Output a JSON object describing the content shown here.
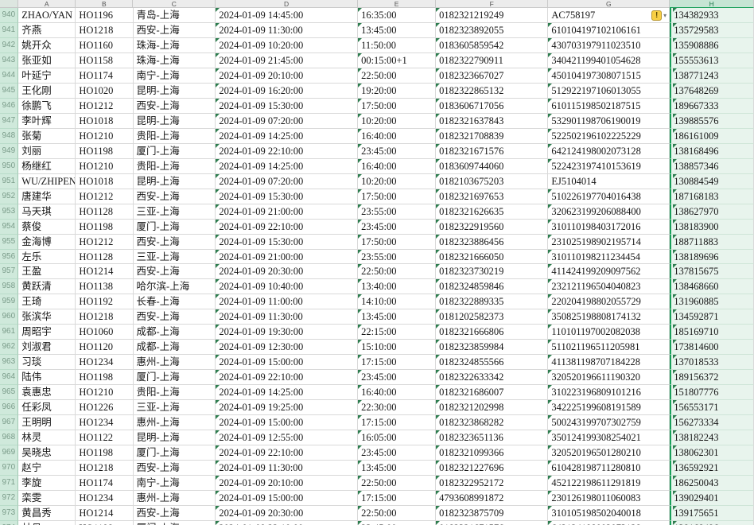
{
  "sheet": {
    "corner_label": "",
    "columns": [
      {
        "letter": "A",
        "key": "name"
      },
      {
        "letter": "B",
        "key": "flight"
      },
      {
        "letter": "C",
        "key": "route"
      },
      {
        "letter": "D",
        "key": "departure"
      },
      {
        "letter": "E",
        "key": "arrival"
      },
      {
        "letter": "F",
        "key": "booking_no"
      },
      {
        "letter": "G",
        "key": "id_no"
      },
      {
        "letter": "H",
        "key": "phone"
      }
    ],
    "selected_column": "H",
    "error_indicator_columns": [
      "departure",
      "arrival",
      "booking_no",
      "id_no",
      "phone"
    ],
    "rows": [
      {
        "n": 940,
        "name": "ZHAO/YAN",
        "flight": "HO1196",
        "route": "青岛-上海",
        "departure": "2024-01-09 14:45:00",
        "arrival": "16:35:00",
        "booking_no": "0182321219249",
        "id_no": "AC758197",
        "phone": "134382933",
        "warning": true
      },
      {
        "n": 941,
        "name": "齐燕",
        "flight": "HO1218",
        "route": "西安-上海",
        "departure": "2024-01-09 11:30:00",
        "arrival": "13:45:00",
        "booking_no": "0182323892055",
        "id_no": "610104197102106161",
        "phone": "135729583"
      },
      {
        "n": 942,
        "name": "姚开众",
        "flight": "HO1160",
        "route": "珠海-上海",
        "departure": "2024-01-09 10:20:00",
        "arrival": "11:50:00",
        "booking_no": "0183605859542",
        "id_no": "430703197911023510",
        "phone": "135908886"
      },
      {
        "n": 943,
        "name": "张亚如",
        "flight": "HO1158",
        "route": "珠海-上海",
        "departure": "2024-01-09 21:45:00",
        "arrival": "00:15:00+1",
        "booking_no": "0182322790911",
        "id_no": "340421199401054628",
        "phone": "155553613"
      },
      {
        "n": 944,
        "name": "叶延宁",
        "flight": "HO1174",
        "route": "南宁-上海",
        "departure": "2024-01-09 20:10:00",
        "arrival": "22:50:00",
        "booking_no": "0182323667027",
        "id_no": "450104197308071515",
        "phone": "138771243"
      },
      {
        "n": 945,
        "name": "王化刚",
        "flight": "HO1020",
        "route": "昆明-上海",
        "departure": "2024-01-09 16:20:00",
        "arrival": "19:20:00",
        "booking_no": "0182322865132",
        "id_no": "512922197106013055",
        "phone": "137648269"
      },
      {
        "n": 946,
        "name": "徐鹏飞",
        "flight": "HO1212",
        "route": "西安-上海",
        "departure": "2024-01-09 15:30:00",
        "arrival": "17:50:00",
        "booking_no": "0183606717056",
        "id_no": "610115198502187515",
        "phone": "189667333"
      },
      {
        "n": 947,
        "name": "李叶辉",
        "flight": "HO1018",
        "route": "昆明-上海",
        "departure": "2024-01-09 07:20:00",
        "arrival": "10:20:00",
        "booking_no": "0182321637843",
        "id_no": "532901198706190019",
        "phone": "139885576"
      },
      {
        "n": 948,
        "name": "张菊",
        "flight": "HO1210",
        "route": "贵阳-上海",
        "departure": "2024-01-09 14:25:00",
        "arrival": "16:40:00",
        "booking_no": "0182321708839",
        "id_no": "522502196102225229",
        "phone": "186161009"
      },
      {
        "n": 949,
        "name": "刘丽",
        "flight": "HO1198",
        "route": "厦门-上海",
        "departure": "2024-01-09 22:10:00",
        "arrival": "23:45:00",
        "booking_no": "0182321671576",
        "id_no": "642124198002073128",
        "phone": "138168496"
      },
      {
        "n": 950,
        "name": "杨继红",
        "flight": "HO1210",
        "route": "贵阳-上海",
        "departure": "2024-01-09 14:25:00",
        "arrival": "16:40:00",
        "booking_no": "0183609744060",
        "id_no": "522423197410153619",
        "phone": "138857346"
      },
      {
        "n": 951,
        "name": "WU/ZHIPENG",
        "flight": "HO1018",
        "route": "昆明-上海",
        "departure": "2024-01-09 07:20:00",
        "arrival": "10:20:00",
        "booking_no": "0182103675203",
        "id_no": "EJ5104014",
        "phone": "130884549"
      },
      {
        "n": 952,
        "name": "唐建华",
        "flight": "HO1212",
        "route": "西安-上海",
        "departure": "2024-01-09 15:30:00",
        "arrival": "17:50:00",
        "booking_no": "0182321697653",
        "id_no": "510226197704016438",
        "phone": "187168183"
      },
      {
        "n": 953,
        "name": "马天琪",
        "flight": "HO1128",
        "route": "三亚-上海",
        "departure": "2024-01-09 21:00:00",
        "arrival": "23:55:00",
        "booking_no": "0182321626635",
        "id_no": "320623199206088400",
        "phone": "138627970"
      },
      {
        "n": 954,
        "name": "蔡俊",
        "flight": "HO1198",
        "route": "厦门-上海",
        "departure": "2024-01-09 22:10:00",
        "arrival": "23:45:00",
        "booking_no": "0182322919560",
        "id_no": "310110198403172016",
        "phone": "138183900"
      },
      {
        "n": 955,
        "name": "金海博",
        "flight": "HO1212",
        "route": "西安-上海",
        "departure": "2024-01-09 15:30:00",
        "arrival": "17:50:00",
        "booking_no": "0182323886456",
        "id_no": "231025198902195714",
        "phone": "188711883"
      },
      {
        "n": 956,
        "name": "左乐",
        "flight": "HO1128",
        "route": "三亚-上海",
        "departure": "2024-01-09 21:00:00",
        "arrival": "23:55:00",
        "booking_no": "0182321666050",
        "id_no": "310110198211234454",
        "phone": "138189696"
      },
      {
        "n": 957,
        "name": "王盈",
        "flight": "HO1214",
        "route": "西安-上海",
        "departure": "2024-01-09 20:30:00",
        "arrival": "22:50:00",
        "booking_no": "0182323730219",
        "id_no": "411424199209097562",
        "phone": "137815675"
      },
      {
        "n": 958,
        "name": "黄跃清",
        "flight": "HO1138",
        "route": "哈尔滨-上海",
        "departure": "2024-01-09 10:40:00",
        "arrival": "13:40:00",
        "booking_no": "0182324859846",
        "id_no": "232121196504040823",
        "phone": "138468660"
      },
      {
        "n": 959,
        "name": "王琦",
        "flight": "HO1192",
        "route": "长春-上海",
        "departure": "2024-01-09 11:00:00",
        "arrival": "14:10:00",
        "booking_no": "0182322889335",
        "id_no": "220204198802055729",
        "phone": "131960885"
      },
      {
        "n": 960,
        "name": "张滨华",
        "flight": "HO1218",
        "route": "西安-上海",
        "departure": "2024-01-09 11:30:00",
        "arrival": "13:45:00",
        "booking_no": "0181202582373",
        "id_no": "350825198808174132",
        "phone": "134592871"
      },
      {
        "n": 961,
        "name": "周昭宇",
        "flight": "HO1060",
        "route": "成都-上海",
        "departure": "2024-01-09 19:30:00",
        "arrival": "22:15:00",
        "booking_no": "0182321666806",
        "id_no": "110101197002082038",
        "phone": "185169710"
      },
      {
        "n": 962,
        "name": "刘淑君",
        "flight": "HO1120",
        "route": "成都-上海",
        "departure": "2024-01-09 12:30:00",
        "arrival": "15:10:00",
        "booking_no": "0182323859984",
        "id_no": "511021196511205981",
        "phone": "173814600"
      },
      {
        "n": 963,
        "name": "习琰",
        "flight": "HO1234",
        "route": "惠州-上海",
        "departure": "2024-01-09 15:00:00",
        "arrival": "17:15:00",
        "booking_no": "0182324855566",
        "id_no": "411381198707184228",
        "phone": "137018533"
      },
      {
        "n": 964,
        "name": "陆伟",
        "flight": "HO1198",
        "route": "厦门-上海",
        "departure": "2024-01-09 22:10:00",
        "arrival": "23:45:00",
        "booking_no": "0182322633342",
        "id_no": "320520196611190320",
        "phone": "189156372"
      },
      {
        "n": 965,
        "name": "袁惠忠",
        "flight": "HO1210",
        "route": "贵阳-上海",
        "departure": "2024-01-09 14:25:00",
        "arrival": "16:40:00",
        "booking_no": "0182321686007",
        "id_no": "310223196809101216",
        "phone": "151807776"
      },
      {
        "n": 966,
        "name": "任彩凤",
        "flight": "HO1226",
        "route": "三亚-上海",
        "departure": "2024-01-09 19:25:00",
        "arrival": "22:30:00",
        "booking_no": "0182321202998",
        "id_no": "342225199608191589",
        "phone": "156553171"
      },
      {
        "n": 967,
        "name": "王明明",
        "flight": "HO1234",
        "route": "惠州-上海",
        "departure": "2024-01-09 15:00:00",
        "arrival": "17:15:00",
        "booking_no": "0182323868282",
        "id_no": "500243199707302759",
        "phone": "156273334"
      },
      {
        "n": 968,
        "name": "林灵",
        "flight": "HO1122",
        "route": "昆明-上海",
        "departure": "2024-01-09 12:55:00",
        "arrival": "16:05:00",
        "booking_no": "0182323651136",
        "id_no": "350124199308254021",
        "phone": "138182243"
      },
      {
        "n": 969,
        "name": "吴晓忠",
        "flight": "HO1198",
        "route": "厦门-上海",
        "departure": "2024-01-09 22:10:00",
        "arrival": "23:45:00",
        "booking_no": "0182321099366",
        "id_no": "320520196501280210",
        "phone": "138062301"
      },
      {
        "n": 970,
        "name": "赵宁",
        "flight": "HO1218",
        "route": "西安-上海",
        "departure": "2024-01-09 11:30:00",
        "arrival": "13:45:00",
        "booking_no": "0182321227696",
        "id_no": "610428198711280810",
        "phone": "136592921"
      },
      {
        "n": 971,
        "name": "李旋",
        "flight": "HO1174",
        "route": "南宁-上海",
        "departure": "2024-01-09 20:10:00",
        "arrival": "22:50:00",
        "booking_no": "0182322952172",
        "id_no": "452122198611291819",
        "phone": "186250043"
      },
      {
        "n": 972,
        "name": "栾雯",
        "flight": "HO1234",
        "route": "惠州-上海",
        "departure": "2024-01-09 15:00:00",
        "arrival": "17:15:00",
        "booking_no": "4793608991872",
        "id_no": "230126198011060083",
        "phone": "139029401"
      },
      {
        "n": 973,
        "name": "黄昌秀",
        "flight": "HO1214",
        "route": "西安-上海",
        "departure": "2024-01-09 20:30:00",
        "arrival": "22:50:00",
        "booking_no": "0182323875709",
        "id_no": "310105198502040018",
        "phone": "139175651"
      },
      {
        "n": 974,
        "name": "林丹",
        "flight": "HO1198",
        "route": "厦门-上海",
        "departure": "2024-01-09 22:10:00",
        "arrival": "23:45:00",
        "booking_no": "0182321671576",
        "id_no": "642124198002073128",
        "phone": "138168496"
      }
    ]
  },
  "icons": {
    "warning_glyph": "!",
    "warning_dropdown_glyph": "▾"
  },
  "colors": {
    "selection_green": "#1aa05a",
    "selected_cell_bg": "#e8f4ed",
    "row_header_bg": "#cfe9db",
    "error_triangle": "#2e7d4f",
    "warning_yellow": "#f8cf44",
    "gridline": "#d9d9d9"
  }
}
